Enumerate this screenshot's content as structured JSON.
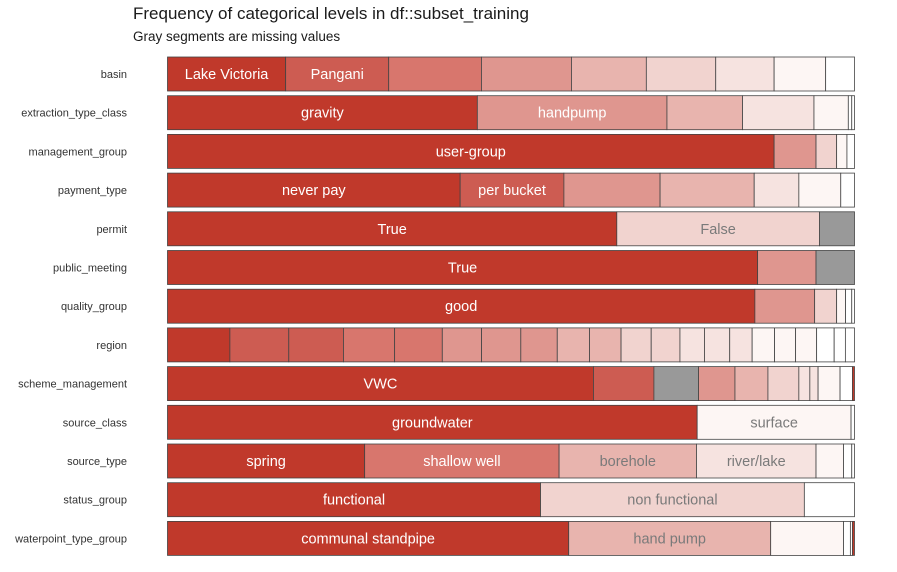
{
  "chart_data": {
    "type": "stacked-bar",
    "title": "Frequency of categorical levels in df::subset_training",
    "subtitle": "Gray segments are missing values",
    "xlabel": "",
    "ylabel": "",
    "xlim": [
      0,
      1
    ],
    "grid": false,
    "legend": "none",
    "colors": {
      "levels": [
        "#c0392b",
        "#cd5c52",
        "#d8766d",
        "#df968f",
        "#e8b4ae",
        "#f1d3cf",
        "#f6e3e0",
        "#fdf6f4",
        "#ffffff"
      ],
      "missing": "#999999",
      "stroke": "#444444",
      "label_dark_bg": "#ffffff",
      "label_light_bg": "#7a7a7a"
    },
    "rows": [
      {
        "variable": "basin",
        "segments": [
          {
            "label": "Lake Victoria",
            "value": 0.172,
            "level": 0
          },
          {
            "label": "Pangani",
            "value": 0.15,
            "level": 1
          },
          {
            "label": "",
            "value": 0.135,
            "level": 2
          },
          {
            "label": "",
            "value": 0.131,
            "level": 3
          },
          {
            "label": "",
            "value": 0.109,
            "level": 4
          },
          {
            "label": "",
            "value": 0.101,
            "level": 5
          },
          {
            "label": "",
            "value": 0.085,
            "level": 6
          },
          {
            "label": "",
            "value": 0.075,
            "level": 7
          },
          {
            "label": "",
            "value": 0.042,
            "level": 8
          }
        ]
      },
      {
        "variable": "extraction_type_class",
        "segments": [
          {
            "label": "gravity",
            "value": 0.451,
            "level": 0
          },
          {
            "label": "handpump",
            "value": 0.276,
            "level": 3
          },
          {
            "label": "",
            "value": 0.11,
            "level": 4
          },
          {
            "label": "",
            "value": 0.104,
            "level": 6
          },
          {
            "label": "",
            "value": 0.05,
            "level": 7
          },
          {
            "label": "",
            "value": 0.005,
            "level": 8
          },
          {
            "label": "",
            "value": 0.004,
            "level": 8
          }
        ]
      },
      {
        "variable": "management_group",
        "segments": [
          {
            "label": "user-group",
            "value": 0.883,
            "level": 0
          },
          {
            "label": "",
            "value": 0.061,
            "level": 3
          },
          {
            "label": "",
            "value": 0.03,
            "level": 5
          },
          {
            "label": "",
            "value": 0.015,
            "level": 7
          },
          {
            "label": "",
            "value": 0.011,
            "level": 8
          }
        ]
      },
      {
        "variable": "payment_type",
        "segments": [
          {
            "label": "never pay",
            "value": 0.426,
            "level": 0
          },
          {
            "label": "per bucket",
            "value": 0.151,
            "level": 1
          },
          {
            "label": "",
            "value": 0.14,
            "level": 3
          },
          {
            "label": "",
            "value": 0.137,
            "level": 4
          },
          {
            "label": "",
            "value": 0.065,
            "level": 6
          },
          {
            "label": "",
            "value": 0.061,
            "level": 7
          },
          {
            "label": "",
            "value": 0.02,
            "level": 8
          }
        ]
      },
      {
        "variable": "permit",
        "segments": [
          {
            "label": "True",
            "value": 0.654,
            "level": 0
          },
          {
            "label": "False",
            "value": 0.295,
            "level": 5
          },
          {
            "label": "",
            "value": 0.051,
            "missing": true
          }
        ]
      },
      {
        "variable": "public_meeting",
        "segments": [
          {
            "label": "True",
            "value": 0.859,
            "level": 0
          },
          {
            "label": "",
            "value": 0.085,
            "level": 3
          },
          {
            "label": "",
            "value": 0.056,
            "missing": true
          }
        ]
      },
      {
        "variable": "quality_group",
        "segments": [
          {
            "label": "good",
            "value": 0.855,
            "level": 0
          },
          {
            "label": "",
            "value": 0.087,
            "level": 3
          },
          {
            "label": "",
            "value": 0.032,
            "level": 5
          },
          {
            "label": "",
            "value": 0.013,
            "level": 7
          },
          {
            "label": "",
            "value": 0.009,
            "level": 8
          },
          {
            "label": "",
            "value": 0.004,
            "level": 8
          }
        ]
      },
      {
        "variable": "region",
        "segments": [
          {
            "label": "",
            "value": 0.089,
            "level": 0
          },
          {
            "label": "",
            "value": 0.084,
            "level": 1
          },
          {
            "label": "",
            "value": 0.078,
            "level": 1
          },
          {
            "label": "",
            "value": 0.073,
            "level": 2
          },
          {
            "label": "",
            "value": 0.068,
            "level": 2
          },
          {
            "label": "",
            "value": 0.056,
            "level": 3
          },
          {
            "label": "",
            "value": 0.056,
            "level": 3
          },
          {
            "label": "",
            "value": 0.052,
            "level": 3
          },
          {
            "label": "",
            "value": 0.046,
            "level": 4
          },
          {
            "label": "",
            "value": 0.045,
            "level": 4
          },
          {
            "label": "",
            "value": 0.043,
            "level": 5
          },
          {
            "label": "",
            "value": 0.041,
            "level": 5
          },
          {
            "label": "",
            "value": 0.035,
            "level": 6
          },
          {
            "label": "",
            "value": 0.036,
            "level": 6
          },
          {
            "label": "",
            "value": 0.032,
            "level": 6
          },
          {
            "label": "",
            "value": 0.032,
            "level": 7
          },
          {
            "label": "",
            "value": 0.03,
            "level": 7
          },
          {
            "label": "",
            "value": 0.03,
            "level": 7
          },
          {
            "label": "",
            "value": 0.025,
            "level": 8
          },
          {
            "label": "",
            "value": 0.016,
            "level": 8
          },
          {
            "label": "",
            "value": 0.013,
            "level": 8
          }
        ]
      },
      {
        "variable": "scheme_management",
        "segments": [
          {
            "label": "VWC",
            "value": 0.62,
            "level": 0
          },
          {
            "label": "",
            "value": 0.088,
            "level": 1
          },
          {
            "label": "",
            "value": 0.065,
            "missing": true
          },
          {
            "label": "",
            "value": 0.053,
            "level": 3
          },
          {
            "label": "",
            "value": 0.048,
            "level": 4
          },
          {
            "label": "",
            "value": 0.045,
            "level": 5
          },
          {
            "label": "",
            "value": 0.016,
            "level": 6
          },
          {
            "label": "",
            "value": 0.012,
            "level": 6
          },
          {
            "label": "",
            "value": 0.032,
            "level": 7
          },
          {
            "label": "",
            "value": 0.018,
            "level": 8
          },
          {
            "label": "",
            "value": 0.003,
            "level": 0
          }
        ]
      },
      {
        "variable": "source_class",
        "segments": [
          {
            "label": "groundwater",
            "value": 0.771,
            "level": 0
          },
          {
            "label": "surface",
            "value": 0.224,
            "level": 7
          },
          {
            "label": "",
            "value": 0.005,
            "level": 8
          }
        ]
      },
      {
        "variable": "source_type",
        "segments": [
          {
            "label": "spring",
            "value": 0.287,
            "level": 0
          },
          {
            "label": "shallow well",
            "value": 0.283,
            "level": 2
          },
          {
            "label": "borehole",
            "value": 0.2,
            "level": 4
          },
          {
            "label": "river/lake",
            "value": 0.174,
            "level": 6
          },
          {
            "label": "",
            "value": 0.04,
            "level": 7
          },
          {
            "label": "",
            "value": 0.012,
            "level": 8
          },
          {
            "label": "",
            "value": 0.004,
            "level": 8
          }
        ]
      },
      {
        "variable": "status_group",
        "segments": [
          {
            "label": "functional",
            "value": 0.543,
            "level": 0
          },
          {
            "label": "non functional",
            "value": 0.384,
            "level": 5
          },
          {
            "label": "",
            "value": 0.073,
            "level": 8
          }
        ]
      },
      {
        "variable": "waterpoint_type_group",
        "segments": [
          {
            "label": "communal standpipe",
            "value": 0.584,
            "level": 0
          },
          {
            "label": "hand pump",
            "value": 0.294,
            "level": 4
          },
          {
            "label": "",
            "value": 0.106,
            "level": 7
          },
          {
            "label": "",
            "value": 0.01,
            "level": 8
          },
          {
            "label": "",
            "value": 0.003,
            "level": 8
          },
          {
            "label": "",
            "value": 0.003,
            "level": 0
          }
        ]
      }
    ]
  }
}
